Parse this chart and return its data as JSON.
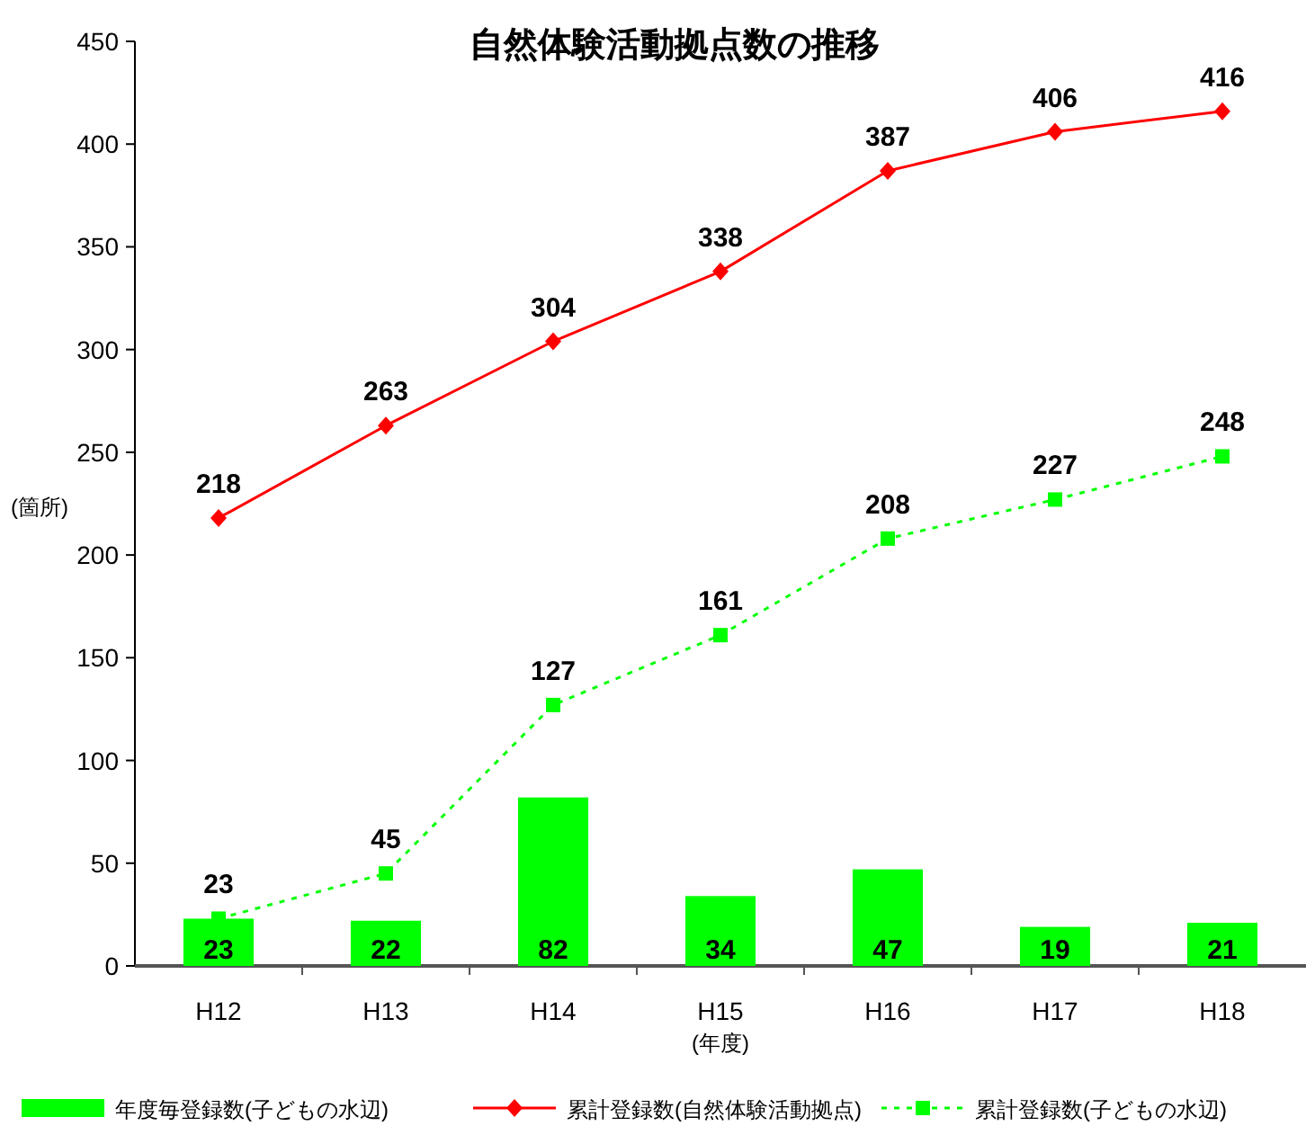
{
  "chart_data": {
    "type": "bar",
    "title": "自然体験活動拠点数の推移",
    "xlabel": "(年度)",
    "ylabel": "(箇所)",
    "categories": [
      "H12",
      "H13",
      "H14",
      "H15",
      "H16",
      "H17",
      "H18"
    ],
    "series": [
      {
        "name": "年度毎登録数(子どもの水辺)",
        "color": "#00ff00",
        "values": [
          23,
          22,
          82,
          34,
          47,
          19,
          21
        ]
      },
      {
        "name": "累計登録数(自然体験活動拠点)",
        "type": "line",
        "color": "#ff0000",
        "marker": "diamond",
        "line_style": "solid",
        "values": [
          218,
          263,
          304,
          338,
          387,
          406,
          416
        ]
      },
      {
        "name": "累計登録数(子どもの水辺)",
        "type": "line",
        "color": "#00ff00",
        "marker": "square",
        "line_style": "dotted",
        "values": [
          23,
          45,
          127,
          161,
          208,
          227,
          248
        ]
      }
    ],
    "ylim": [
      0,
      450
    ],
    "yticks": [
      0,
      50,
      100,
      150,
      200,
      250,
      300,
      350,
      400,
      450
    ],
    "data_labels": true,
    "grid": false,
    "legend": "bottom"
  }
}
